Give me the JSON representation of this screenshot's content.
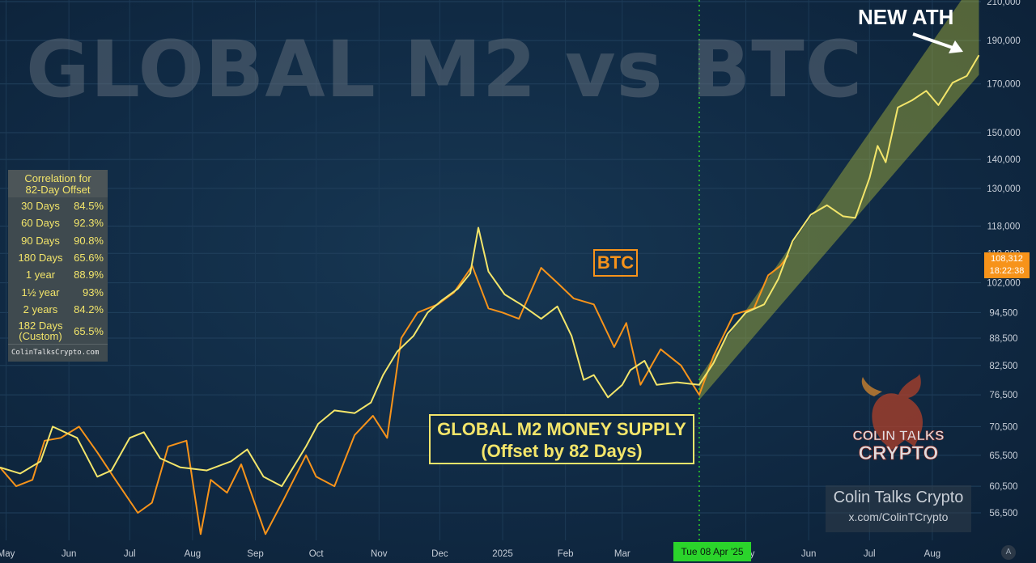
{
  "watermark": "GLOBAL M2 vs BTC",
  "colors": {
    "btc": "#f7931a",
    "m2": "#f3e56a",
    "channel": "#b8c23a",
    "cursor": "#2bd42b",
    "background": "#102a44"
  },
  "correlation_panel": {
    "title_line1": "Correlation for",
    "title_line2": "82-Day Offset",
    "rows": [
      {
        "label": "30 Days",
        "value": "84.5%"
      },
      {
        "label": "60 Days",
        "value": "92.3%"
      },
      {
        "label": "90 Days",
        "value": "90.8%"
      },
      {
        "label": "180 Days",
        "value": "65.6%"
      },
      {
        "label": "1 year",
        "value": "88.9%"
      },
      {
        "label": "1½ year",
        "value": "93%"
      },
      {
        "label": "2 years",
        "value": "84.2%"
      },
      {
        "label": "182 Days (Custom)",
        "value": "65.5%"
      }
    ],
    "footer": "ColinTalksCrypto.com"
  },
  "annotations": {
    "btc_label": "BTC",
    "m2_line1": "GLOBAL M2 MONEY SUPPLY",
    "m2_line2": "(Offset by 82 Days)",
    "new_ath": "NEW ATH"
  },
  "price_tag": {
    "price": "108,312",
    "time": "18:22:38"
  },
  "crosshair_date": "Tue 08 Apr '25",
  "brand": {
    "name": "Colin Talks Crypto",
    "handle": "x.com/ColinTCrypto",
    "logo_line1": "COLIN TALKS",
    "logo_line2": "CRYPTO"
  },
  "autoscale_label": "A",
  "chart_data": {
    "type": "line",
    "y_scale": "log",
    "ylim": [
      52000,
      212000
    ],
    "y_ticks": [
      210000,
      190000,
      170000,
      150000,
      140000,
      130000,
      118000,
      110000,
      102000,
      94500,
      88500,
      82500,
      76500,
      70500,
      65500,
      60500,
      56500
    ],
    "y_tick_labels": [
      "210,000",
      "190,000",
      "170,000",
      "150,000",
      "140,000",
      "130,000",
      "118,000",
      "110,000",
      "102,000",
      "94,500",
      "88,500",
      "82,500",
      "76,500",
      "70,500",
      "65,500",
      "60,500",
      "56,500"
    ],
    "x_start": "2024-04-28",
    "x_end": "2025-08-25",
    "x_ticks": [
      {
        "date": "2024-05-01",
        "label": "May"
      },
      {
        "date": "2024-06-01",
        "label": "Jun"
      },
      {
        "date": "2024-07-01",
        "label": "Jul"
      },
      {
        "date": "2024-08-01",
        "label": "Aug"
      },
      {
        "date": "2024-09-01",
        "label": "Sep"
      },
      {
        "date": "2024-10-01",
        "label": "Oct"
      },
      {
        "date": "2024-11-01",
        "label": "Nov"
      },
      {
        "date": "2024-12-01",
        "label": "Dec"
      },
      {
        "date": "2025-01-01",
        "label": "2025"
      },
      {
        "date": "2025-02-01",
        "label": "Feb"
      },
      {
        "date": "2025-03-01",
        "label": "Mar"
      },
      {
        "date": "2025-05-01",
        "label": "May"
      },
      {
        "date": "2025-06-01",
        "label": "Jun"
      },
      {
        "date": "2025-07-01",
        "label": "Jul"
      },
      {
        "date": "2025-08-01",
        "label": "Aug"
      }
    ],
    "cursor_date": "2025-04-08",
    "series": [
      {
        "name": "BTC",
        "color": "#f7931a",
        "points": [
          [
            "2024-04-28",
            63500
          ],
          [
            "2024-05-06",
            60500
          ],
          [
            "2024-05-14",
            61500
          ],
          [
            "2024-05-20",
            68000
          ],
          [
            "2024-05-28",
            68500
          ],
          [
            "2024-06-06",
            70500
          ],
          [
            "2024-06-15",
            66000
          ],
          [
            "2024-06-24",
            61500
          ],
          [
            "2024-07-05",
            56500
          ],
          [
            "2024-07-12",
            58000
          ],
          [
            "2024-07-20",
            67000
          ],
          [
            "2024-07-29",
            68000
          ],
          [
            "2024-08-05",
            53500
          ],
          [
            "2024-08-10",
            61500
          ],
          [
            "2024-08-18",
            59500
          ],
          [
            "2024-08-25",
            64000
          ],
          [
            "2024-09-06",
            53500
          ],
          [
            "2024-09-15",
            58500
          ],
          [
            "2024-09-26",
            65500
          ],
          [
            "2024-10-01",
            62000
          ],
          [
            "2024-10-10",
            60500
          ],
          [
            "2024-10-20",
            69000
          ],
          [
            "2024-10-29",
            72500
          ],
          [
            "2024-11-05",
            68500
          ],
          [
            "2024-11-12",
            88500
          ],
          [
            "2024-11-20",
            94500
          ],
          [
            "2024-11-30",
            96500
          ],
          [
            "2024-12-08",
            99500
          ],
          [
            "2024-12-17",
            106500
          ],
          [
            "2024-12-25",
            95500
          ],
          [
            "2025-01-01",
            94500
          ],
          [
            "2025-01-09",
            93000
          ],
          [
            "2025-01-20",
            106000
          ],
          [
            "2025-01-28",
            102000
          ],
          [
            "2025-02-05",
            98000
          ],
          [
            "2025-02-15",
            96500
          ],
          [
            "2025-02-25",
            86500
          ],
          [
            "2025-03-03",
            92000
          ],
          [
            "2025-03-10",
            78500
          ],
          [
            "2025-03-20",
            86000
          ],
          [
            "2025-03-30",
            82500
          ],
          [
            "2025-04-08",
            76500
          ],
          [
            "2025-04-15",
            84500
          ],
          [
            "2025-04-25",
            94000
          ],
          [
            "2025-05-05",
            95500
          ],
          [
            "2025-05-12",
            104000
          ],
          [
            "2025-05-18",
            106500
          ],
          [
            "2025-05-22",
            109500
          ]
        ]
      },
      {
        "name": "GLOBAL M2 MONEY SUPPLY (Offset by 82 Days)",
        "color": "#f3e56a",
        "points": [
          [
            "2024-04-28",
            63500
          ],
          [
            "2024-05-08",
            62500
          ],
          [
            "2024-05-18",
            64500
          ],
          [
            "2024-05-24",
            70500
          ],
          [
            "2024-06-05",
            68500
          ],
          [
            "2024-06-15",
            62000
          ],
          [
            "2024-06-22",
            63000
          ],
          [
            "2024-07-01",
            68500
          ],
          [
            "2024-07-08",
            69500
          ],
          [
            "2024-07-16",
            65000
          ],
          [
            "2024-07-26",
            63500
          ],
          [
            "2024-08-08",
            63000
          ],
          [
            "2024-08-20",
            64500
          ],
          [
            "2024-08-28",
            66500
          ],
          [
            "2024-09-05",
            62000
          ],
          [
            "2024-09-14",
            60500
          ],
          [
            "2024-09-26",
            67000
          ],
          [
            "2024-10-02",
            71000
          ],
          [
            "2024-10-10",
            73500
          ],
          [
            "2024-10-20",
            73000
          ],
          [
            "2024-10-28",
            75000
          ],
          [
            "2024-11-03",
            80500
          ],
          [
            "2024-11-10",
            85500
          ],
          [
            "2024-11-18",
            89000
          ],
          [
            "2024-11-25",
            94500
          ],
          [
            "2024-12-02",
            97500
          ],
          [
            "2024-12-10",
            100500
          ],
          [
            "2024-12-16",
            104500
          ],
          [
            "2024-12-20",
            117500
          ],
          [
            "2024-12-25",
            105000
          ],
          [
            "2025-01-02",
            99000
          ],
          [
            "2025-01-10",
            96500
          ],
          [
            "2025-01-20",
            93000
          ],
          [
            "2025-01-28",
            96000
          ],
          [
            "2025-02-04",
            89000
          ],
          [
            "2025-02-10",
            79500
          ],
          [
            "2025-02-15",
            80500
          ],
          [
            "2025-02-22",
            76000
          ],
          [
            "2025-03-01",
            78500
          ],
          [
            "2025-03-05",
            81500
          ],
          [
            "2025-03-12",
            83500
          ],
          [
            "2025-03-18",
            78500
          ],
          [
            "2025-03-28",
            79000
          ],
          [
            "2025-04-08",
            78500
          ],
          [
            "2025-04-15",
            83000
          ],
          [
            "2025-04-22",
            89500
          ],
          [
            "2025-05-01",
            94500
          ],
          [
            "2025-05-10",
            96500
          ],
          [
            "2025-05-17",
            103000
          ],
          [
            "2025-05-24",
            113500
          ],
          [
            "2025-06-02",
            121500
          ],
          [
            "2025-06-10",
            124500
          ],
          [
            "2025-06-18",
            121000
          ],
          [
            "2025-06-24",
            120500
          ],
          [
            "2025-07-01",
            133500
          ],
          [
            "2025-07-05",
            145000
          ],
          [
            "2025-07-09",
            139000
          ],
          [
            "2025-07-15",
            160000
          ],
          [
            "2025-07-22",
            163000
          ],
          [
            "2025-07-29",
            167000
          ],
          [
            "2025-08-04",
            161000
          ],
          [
            "2025-08-11",
            170500
          ],
          [
            "2025-08-18",
            173500
          ],
          [
            "2025-08-24",
            183000
          ]
        ]
      }
    ],
    "channel": {
      "lower": [
        [
          "2025-04-08",
          75500
        ],
        [
          "2025-08-24",
          174000
        ]
      ],
      "upper": [
        [
          "2025-04-08",
          80000
        ],
        [
          "2025-08-24",
          225000
        ]
      ]
    }
  }
}
